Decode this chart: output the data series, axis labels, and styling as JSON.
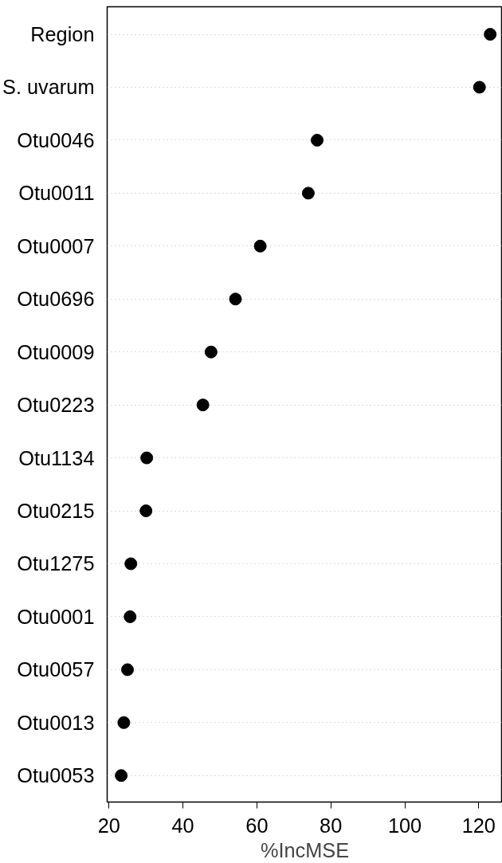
{
  "chart_data": {
    "type": "scatter",
    "orientation": "horizontal",
    "xlabel": "%IncMSE",
    "categories": [
      "Region",
      "S. uvarum",
      "Otu0046",
      "Otu0011",
      "Otu0007",
      "Otu0696",
      "Otu0009",
      "Otu0223",
      "Otu1134",
      "Otu0215",
      "Otu1275",
      "Otu0001",
      "Otu0057",
      "Otu0013",
      "Otu0053"
    ],
    "values": [
      123.1,
      120.2,
      76.3,
      73.9,
      60.9,
      54.2,
      47.6,
      45.4,
      30.2,
      30.0,
      25.9,
      25.7,
      25.0,
      24.0,
      23.3
    ],
    "color": "#000000",
    "marker": "circle",
    "grid": "y",
    "xlim": [
      19.5,
      126.4
    ],
    "xticks": [
      20,
      40,
      60,
      80,
      100,
      120
    ]
  }
}
